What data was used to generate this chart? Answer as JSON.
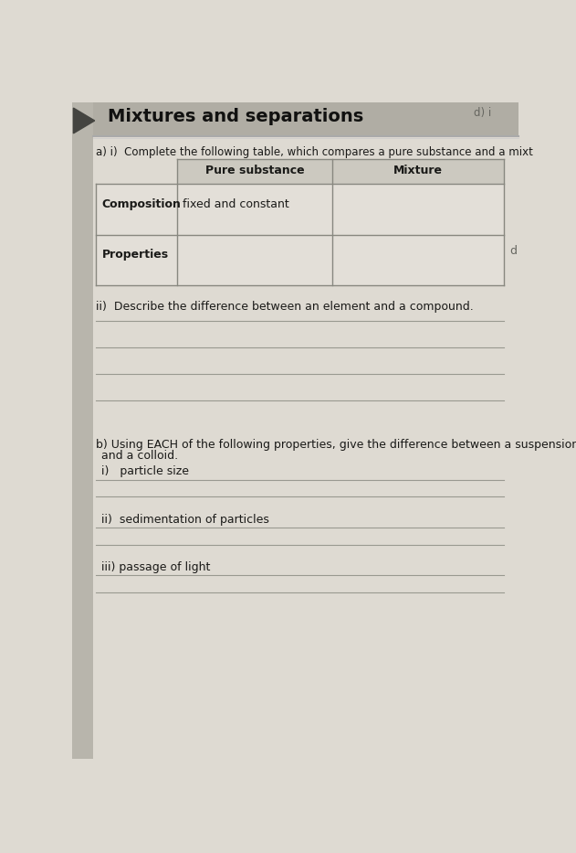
{
  "title": "Mixtures and separations",
  "corner_label": "d) i",
  "part_a_q": "a) i)  Complete the following table, which compares a pure substance and a mixt",
  "col_headers": [
    "Pure substance",
    "Mixture"
  ],
  "row_labels": [
    "Composition",
    "Properties"
  ],
  "cell_content": "fixed and constant",
  "part_a_ii_q": "ii)  Describe the difference between an element and a compound.",
  "part_b_q1": "b) Using EACH of the following properties, give the difference between a suspension",
  "part_b_q2": "    and a colloid.",
  "part_b_i": "i)   particle size",
  "part_b_ii": "ii)  sedimentation of particles",
  "part_b_iii": "iii) passage of light",
  "right_d": "d",
  "page_bg": "#dedad2",
  "header_bg": "#b8b5ac",
  "tab_bg": "#b0ada4",
  "table_header_bg": "#ccc9c0",
  "white_bg": "#f0ede6",
  "line_color": "#999990",
  "table_line_color": "#888880",
  "text_color": "#1a1a18",
  "title_color": "#111110"
}
